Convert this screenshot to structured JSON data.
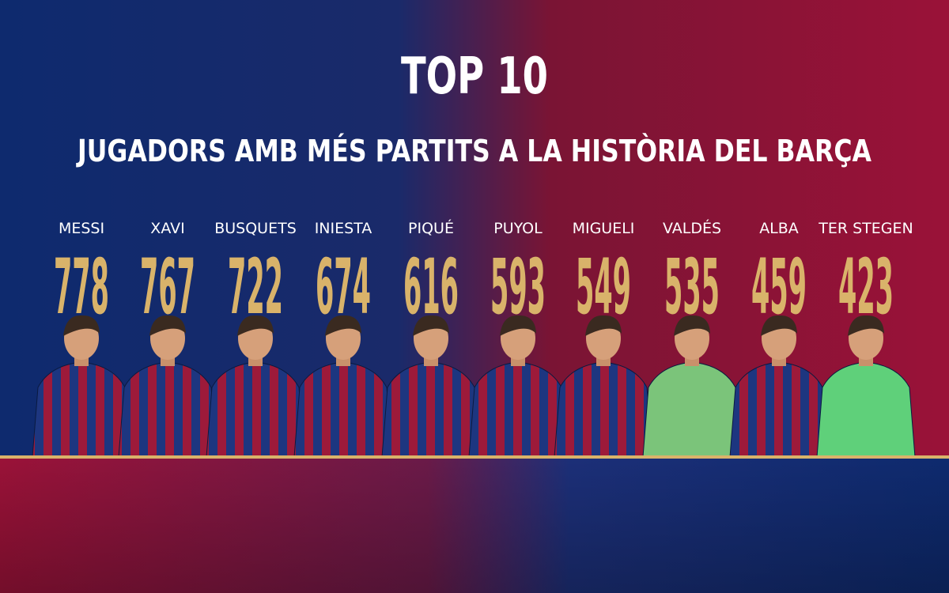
{
  "header": {
    "title": "TOP 10",
    "subtitle": "JUGADORS AMB MÉS PARTITS A LA HISTÒRIA DEL BARÇA"
  },
  "players": [
    {
      "name": "MESSI",
      "matches": 778
    },
    {
      "name": "XAVI",
      "matches": 767
    },
    {
      "name": "BUSQUETS",
      "matches": 722
    },
    {
      "name": "INIESTA",
      "matches": 674
    },
    {
      "name": "PIQUÉ",
      "matches": 616
    },
    {
      "name": "PUYOL",
      "matches": 593
    },
    {
      "name": "MIGUELI",
      "matches": 549
    },
    {
      "name": "VALDÉS",
      "matches": 535
    },
    {
      "name": "ALBA",
      "matches": 459
    },
    {
      "name": "TER STEGEN",
      "matches": 423
    }
  ]
}
